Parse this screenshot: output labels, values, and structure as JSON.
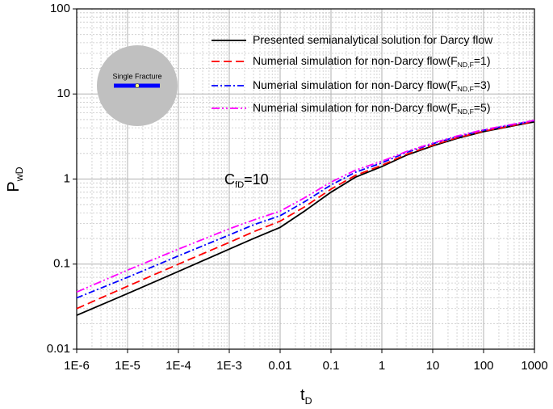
{
  "chart_data": {
    "type": "line",
    "x_label": {
      "text": "t",
      "sub": "D"
    },
    "y_label": {
      "text": "P",
      "sub": "wD"
    },
    "annotation": {
      "text": "C",
      "sub": "fD",
      "tail": "=10"
    },
    "inset_label": "Single Fracture",
    "x": [
      1e-06,
      1e-05,
      0.0001,
      0.001,
      0.003,
      0.01,
      0.03,
      0.1,
      0.3,
      1,
      3,
      10,
      30,
      100,
      300,
      1000
    ],
    "series": [
      {
        "name": {
          "text": "Presented semianalytical solution for Darcy flow"
        },
        "color": "#000000",
        "dash": "none",
        "values": [
          0.025,
          0.045,
          0.082,
          0.15,
          0.2,
          0.27,
          0.42,
          0.7,
          1.05,
          1.4,
          1.9,
          2.45,
          3.0,
          3.6,
          4.1,
          4.7
        ]
      },
      {
        "name": {
          "text": "Numerial simulation for non-Darcy flow(F",
          "sub": "ND,F",
          "tail": "=1)"
        },
        "color": "#ff0000",
        "dash": "10,5",
        "values": [
          0.03,
          0.055,
          0.1,
          0.18,
          0.24,
          0.32,
          0.47,
          0.76,
          1.1,
          1.45,
          1.95,
          2.5,
          3.05,
          3.65,
          4.15,
          4.75
        ]
      },
      {
        "name": {
          "text": "Numerial simulation for non-Darcy flow(F",
          "sub": "ND,F",
          "tail": "=3)"
        },
        "color": "#0000ff",
        "dash": "8,3,2,3",
        "values": [
          0.04,
          0.07,
          0.125,
          0.22,
          0.29,
          0.37,
          0.54,
          0.85,
          1.2,
          1.55,
          2.05,
          2.6,
          3.15,
          3.75,
          4.25,
          4.85
        ]
      },
      {
        "name": {
          "text": "Numerial simulation for non-Darcy flow(F",
          "sub": "ND,F",
          "tail": "=5)"
        },
        "color": "#ff00ff",
        "dash": "10,3,2,3,2,3",
        "values": [
          0.047,
          0.085,
          0.15,
          0.26,
          0.33,
          0.42,
          0.6,
          0.92,
          1.27,
          1.62,
          2.1,
          2.65,
          3.2,
          3.8,
          4.3,
          4.9
        ]
      }
    ],
    "xlog": true,
    "ylog": true,
    "xlim": [
      1e-06,
      1000
    ],
    "ylim": [
      0.01,
      100
    ],
    "xticks": [
      {
        "value": 1e-06,
        "label": "1E-6"
      },
      {
        "value": 1e-05,
        "label": "1E-5"
      },
      {
        "value": 0.0001,
        "label": "1E-4"
      },
      {
        "value": 0.001,
        "label": "1E-3"
      },
      0.01,
      0.1,
      1,
      10,
      100,
      1000
    ],
    "yticks": [
      0.01,
      0.1,
      1,
      10,
      100
    ],
    "grid": true,
    "legend": "upper right"
  }
}
